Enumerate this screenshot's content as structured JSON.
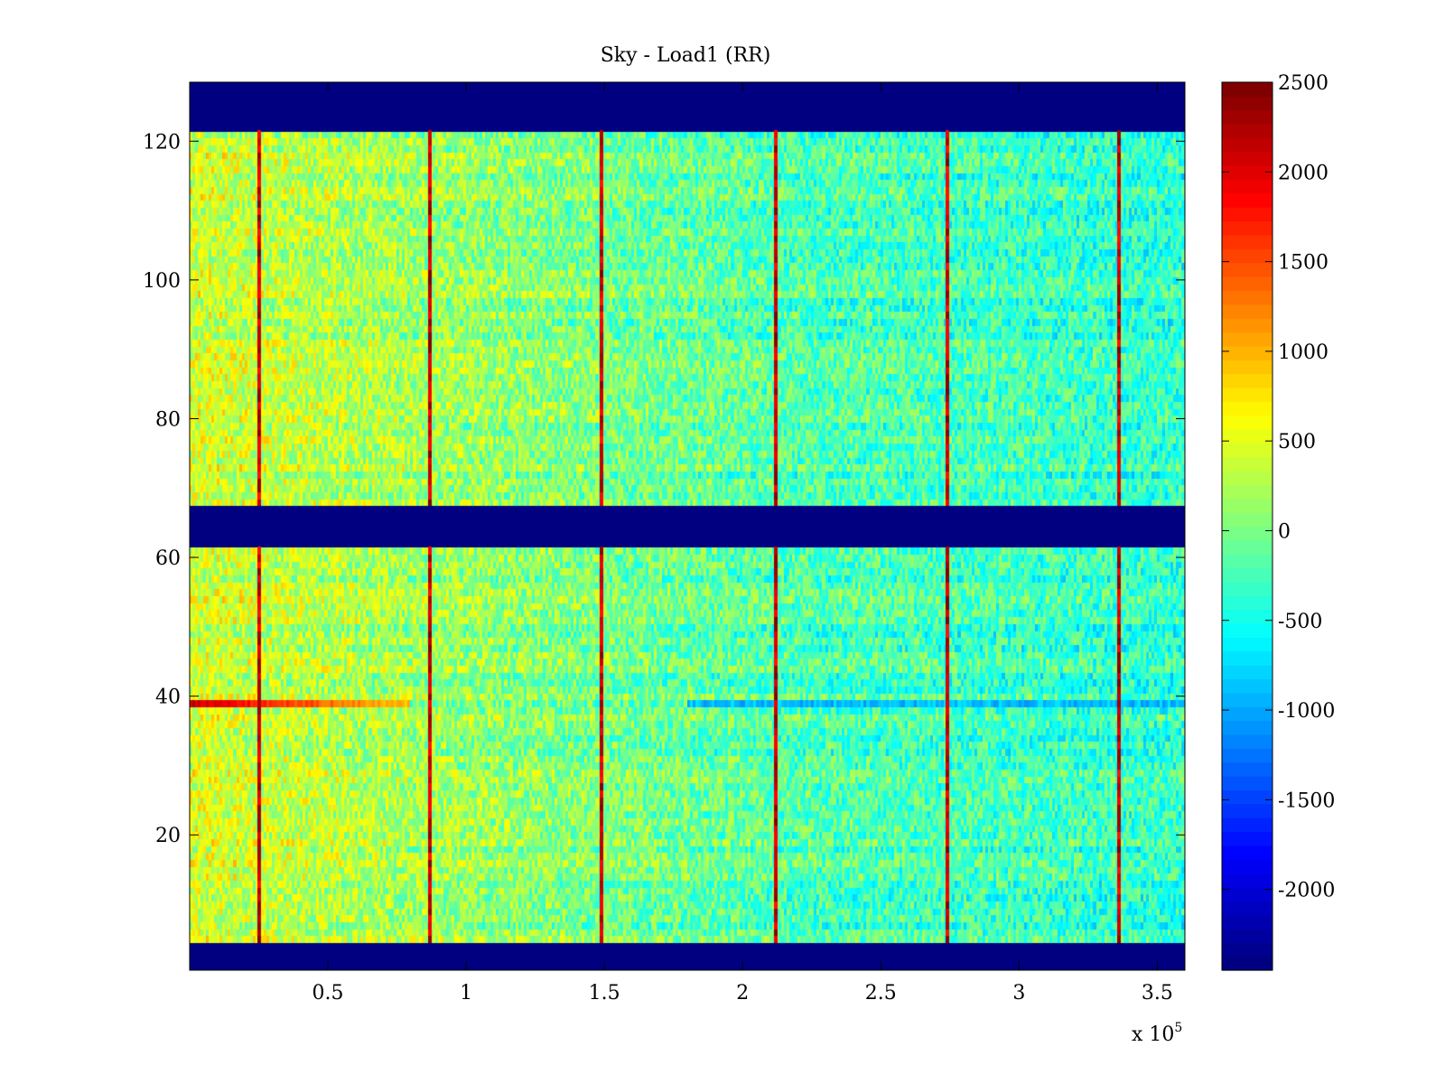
{
  "chart_data": {
    "type": "heatmap",
    "title": "Sky - Load1 (RR)",
    "xlabel": "",
    "ylabel": "",
    "x_scale_label": "x 10",
    "x_scale_exponent": "5",
    "xlim": [
      0,
      3.6
    ],
    "ylim": [
      1,
      128
    ],
    "xticks": [
      0.5,
      1,
      1.5,
      2,
      2.5,
      3,
      3.5
    ],
    "xtick_labels": [
      "0.5",
      "1",
      "1.5",
      "2",
      "2.5",
      "3",
      "3.5"
    ],
    "yticks": [
      20,
      40,
      60,
      80,
      100,
      120
    ],
    "ytick_labels": [
      "20",
      "40",
      "60",
      "80",
      "100",
      "120"
    ],
    "colorbar": {
      "colormap": "jet",
      "clim": [
        -2450,
        2500
      ],
      "ticks": [
        2500,
        2000,
        1500,
        1000,
        500,
        0,
        -500,
        -1000,
        -1500,
        -2000
      ],
      "tick_labels": [
        "2500",
        "2000",
        "1500",
        "1000",
        "500",
        "0",
        "-500",
        "-1000",
        "-1500",
        "-2000"
      ],
      "levels": 64
    },
    "masked_rows": [
      {
        "from": 1,
        "to": 4,
        "value": -2450
      },
      {
        "from": 62,
        "to": 67,
        "value": -2450
      },
      {
        "from": 122,
        "to": 128,
        "value": -2450
      }
    ],
    "data_row_range": [
      5,
      121
    ],
    "spike_columns_x": [
      0.25,
      0.87,
      1.49,
      2.12,
      2.74,
      3.36
    ],
    "spike_value": 2450,
    "hot_row": {
      "row": 39,
      "from_x": 0.0,
      "to_x": 0.8,
      "value": 2100
    },
    "cold_row": {
      "row": 39,
      "from_x": 1.8,
      "to_x": 3.6,
      "value": -900
    },
    "background_trend": [
      {
        "x": 0.0,
        "value": 450
      },
      {
        "x": 0.8,
        "value": 200
      },
      {
        "x": 1.5,
        "value": 0
      },
      {
        "x": 2.2,
        "value": -200
      },
      {
        "x": 3.6,
        "value": -350
      }
    ],
    "noise_amplitude": 450
  },
  "colors": {
    "axis": "#000000",
    "background": "#ffffff"
  }
}
